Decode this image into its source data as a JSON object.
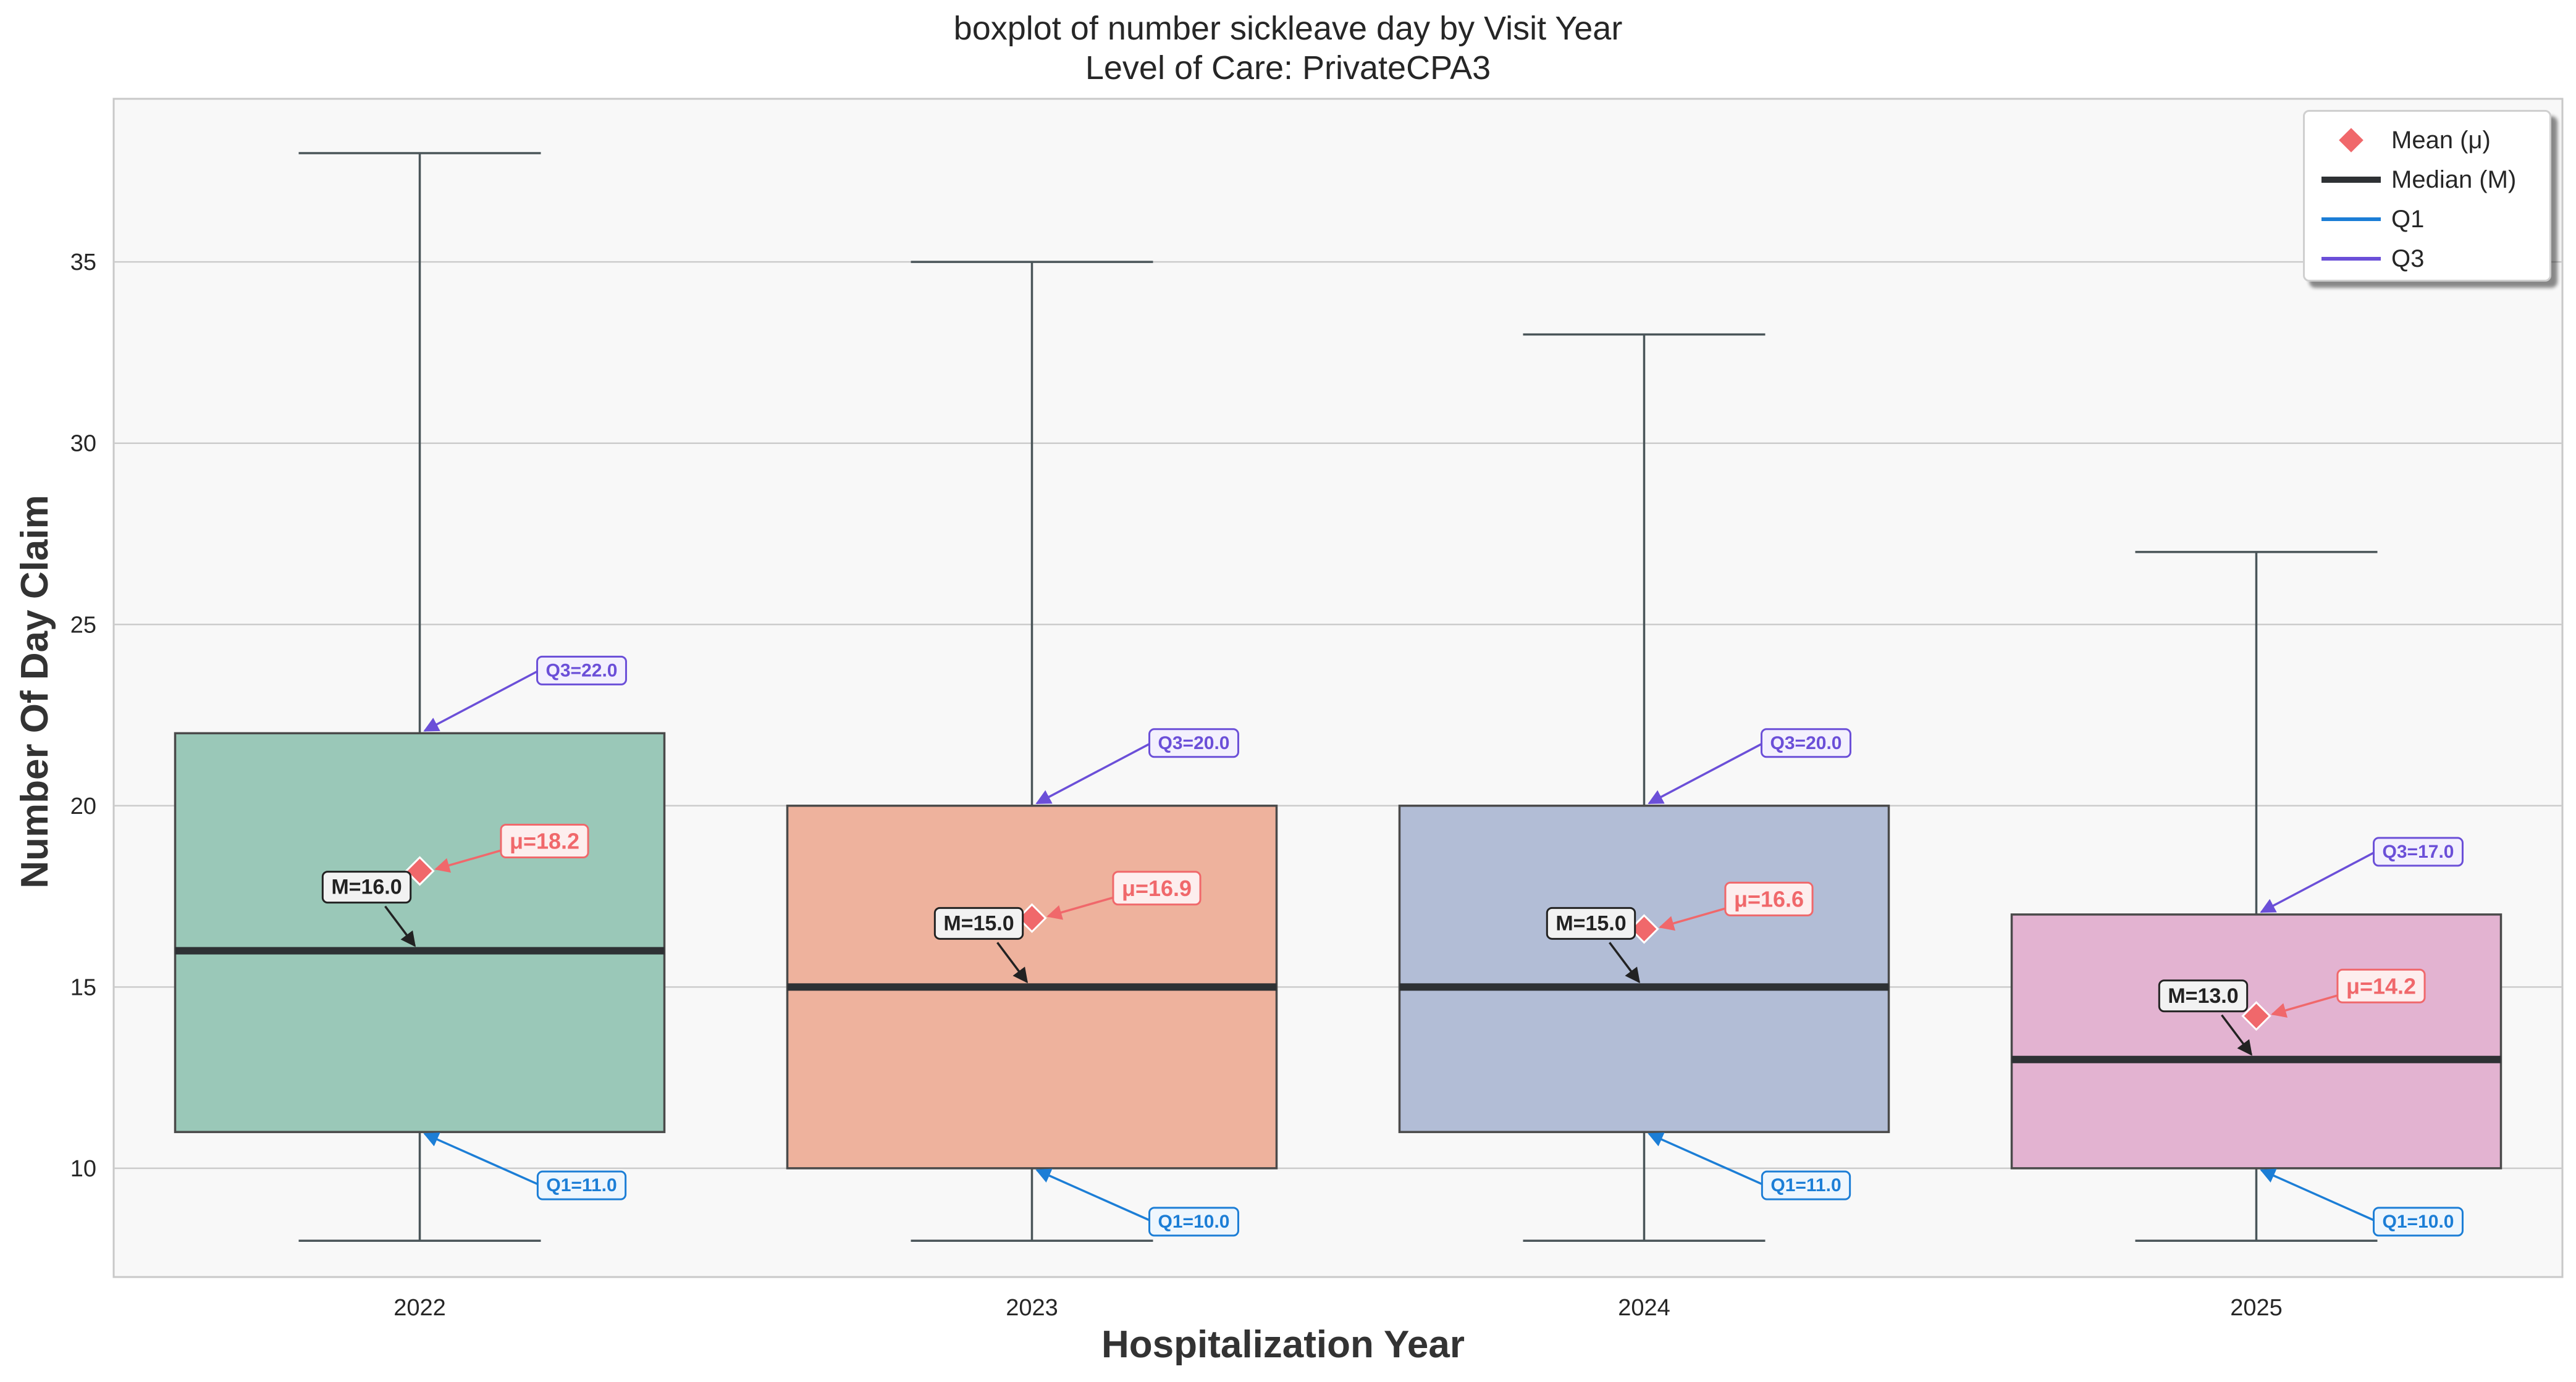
{
  "chart_data": {
    "type": "box",
    "title_lines": [
      "boxplot of number sickleave day by Visit Year",
      "Level of Care: PrivateCPA3"
    ],
    "xlabel": "Hospitalization Year",
    "ylabel": "Number Of Day Claim",
    "ylim": [
      7,
      39.5
    ],
    "yticks": [
      10,
      15,
      20,
      25,
      30,
      35
    ],
    "categories": [
      "2022",
      "2023",
      "2024",
      "2025"
    ],
    "boxes": [
      {
        "category": "2022",
        "whisker_low": 8,
        "q1": 11,
        "median": 16,
        "q3": 22,
        "whisker_high": 38,
        "mean": 18.2,
        "color": "#9AC8B8",
        "labels": {
          "q1": "Q1=11.0",
          "median": "M=16.0",
          "q3": "Q3=22.0",
          "mean": "μ=18.2"
        }
      },
      {
        "category": "2023",
        "whisker_low": 8,
        "q1": 10,
        "median": 15,
        "q3": 20,
        "whisker_high": 35,
        "mean": 16.9,
        "color": "#EEB29D",
        "labels": {
          "q1": "Q1=10.0",
          "median": "M=15.0",
          "q3": "Q3=20.0",
          "mean": "μ=16.9"
        }
      },
      {
        "category": "2024",
        "whisker_low": 8,
        "q1": 11,
        "median": 15,
        "q3": 20,
        "whisker_high": 33,
        "mean": 16.6,
        "color": "#B2BDD6",
        "labels": {
          "q1": "Q1=11.0",
          "median": "M=15.0",
          "q3": "Q3=20.0",
          "mean": "μ=16.6"
        }
      },
      {
        "category": "2025",
        "whisker_low": 8,
        "q1": 10,
        "median": 13,
        "q3": 17,
        "whisker_high": 27,
        "mean": 14.2,
        "color": "#E3B3D1",
        "labels": {
          "q1": "Q1=10.0",
          "median": "M=13.0",
          "q3": "Q3=17.0",
          "mean": "μ=14.2"
        }
      }
    ],
    "grid": true,
    "legend": {
      "placement": "top-right",
      "entries": [
        {
          "label": "Mean (μ)",
          "symbol": "diamond",
          "color": "#F0686B"
        },
        {
          "label": "Median (M)",
          "symbol": "line",
          "color": "#2E3134"
        },
        {
          "label": "Q1",
          "symbol": "line",
          "color": "#1C7ED6"
        },
        {
          "label": "Q3",
          "symbol": "line",
          "color": "#6B4FD8"
        }
      ]
    },
    "colors": {
      "mean": "#F0686B",
      "median": "#2E3134",
      "q1": "#1C7ED6",
      "q3": "#6B4FD8",
      "whisker": "#4A5559",
      "plot_bg": "#F8F8F8",
      "grid": "#CCCCCC"
    }
  }
}
